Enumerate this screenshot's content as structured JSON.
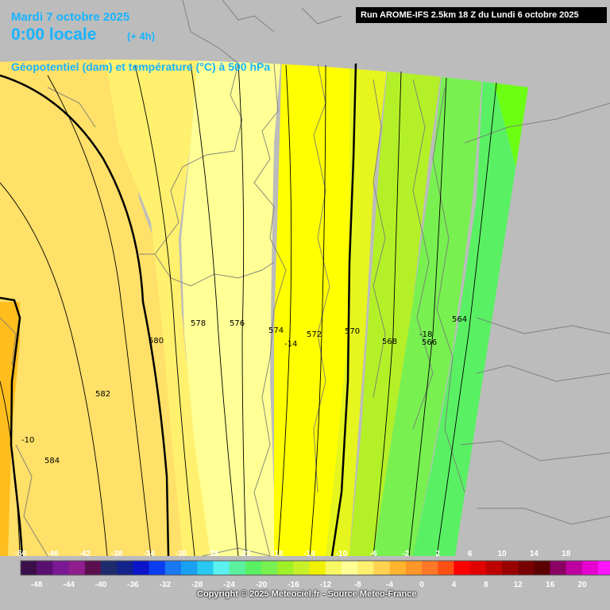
{
  "header": {
    "date": "Mardi 7 octobre 2025",
    "time": "0:00 locale",
    "lead": "(+ 4h)",
    "parameter": "Géopotentiel (dam) et température (°C) à 500 hPa",
    "run": "Run AROME-IFS 2.5km 18 Z du Lundi 6 octobre 2025"
  },
  "footer": {
    "copyright": "Copyright © 2025 Meteociel.fr - Source Meteo-France"
  },
  "map": {
    "geopotential_labels": [
      "584",
      "582",
      "580",
      "578",
      "576",
      "574",
      "572",
      "570",
      "568",
      "566",
      "564"
    ],
    "temperature_labels": [
      "-10",
      "-14",
      "-18"
    ]
  },
  "legend": {
    "top_labels": [
      "-50",
      "-46",
      "-42",
      "-38",
      "-34",
      "-30",
      "-26",
      "-22",
      "-18",
      "-14",
      "-10",
      "-6",
      "-2",
      "2",
      "6",
      "10",
      "14",
      "18"
    ],
    "bottom_labels": [
      "-48",
      "-44",
      "-40",
      "-36",
      "-32",
      "-28",
      "-24",
      "-20",
      "-16",
      "-12",
      "-8",
      "-4",
      "0",
      "4",
      "8",
      "12",
      "16",
      "20"
    ],
    "colors": [
      "#3a0f4a",
      "#5a1070",
      "#7a1895",
      "#8f1e8f",
      "#5c0f4f",
      "#1e2c6e",
      "#13238c",
      "#0a14c8",
      "#0a3cf0",
      "#1a78f0",
      "#1aa0f0",
      "#28c8f0",
      "#5af0f0",
      "#5af0a0",
      "#5af064",
      "#78f050",
      "#a0f028",
      "#c8f028",
      "#f0f000",
      "#f8f864",
      "#ffff96",
      "#fff070",
      "#ffd250",
      "#ffb42d",
      "#ff9628",
      "#ff7828",
      "#ff5014",
      "#ff0000",
      "#e10000",
      "#be0000",
      "#9b0000",
      "#780000",
      "#5a0000",
      "#8c0064",
      "#be00a0",
      "#e600d2",
      "#ff14ff",
      "#f0a0f0"
    ]
  }
}
